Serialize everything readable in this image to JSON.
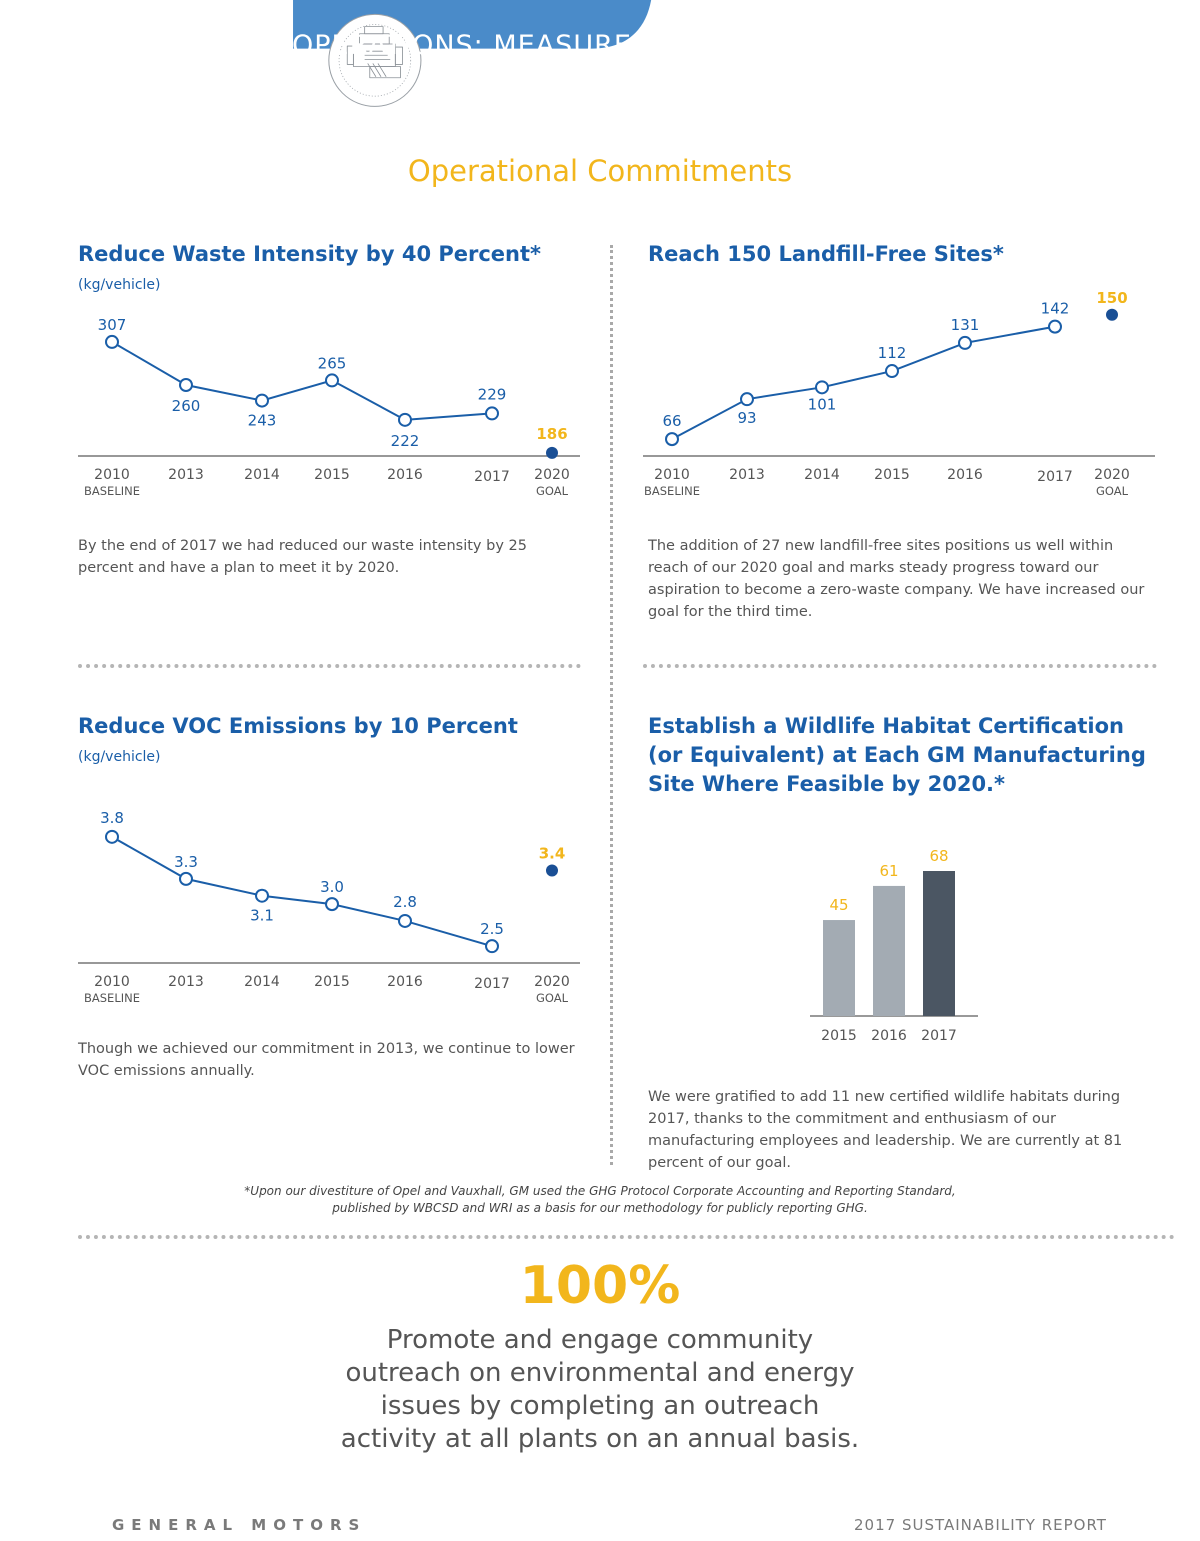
{
  "header": {
    "section_label": "OPERATIONS: MEASURE",
    "title": "Operational Commitments",
    "icon": "engine-icon",
    "banner_color": "#4a8bc9"
  },
  "colors": {
    "accent": "#f2b61c",
    "brand_blue": "#1a5ea8",
    "line_blue": "#1a5ea8"
  },
  "panels": {
    "waste": {
      "title": "Reduce Waste Intensity by 40 Percent*",
      "unit": "(kg/vehicle)",
      "description": "By the end of 2017 we had reduced our waste intensity by 25 percent and have a plan to meet it by 2020."
    },
    "landfill": {
      "title": "Reach 150 Landfill-Free Sites*",
      "description": "The addition of 27 new landfill-free sites positions us well within reach of our 2020 goal and marks steady progress toward our aspiration to become a zero-waste company. We have increased our goal for the third time."
    },
    "voc": {
      "title": "Reduce VOC Emissions by 10 Percent",
      "unit": "(kg/vehicle)",
      "description": "Though we achieved our commitment in 2013, we continue to lower VOC emissions annually."
    },
    "wildlife": {
      "title_lines": [
        "Establish a Wildlife Habitat Certification",
        "(or Equivalent) at Each GM Manufacturing",
        "Site Where Feasible by 2020.*"
      ],
      "description": "We were gratified to add 11 new certified wildlife habitats during 2017, thanks to the commitment and enthusiasm of our manufacturing employees and leadership. We are currently at 81 percent of our goal."
    }
  },
  "chart_data": [
    {
      "type": "line",
      "categories": [
        "2010",
        "2013",
        "2014",
        "2015",
        "2016",
        "2017",
        "2020"
      ],
      "sublabels": [
        "BASELINE",
        "",
        "",
        "",
        "",
        "",
        "GOAL"
      ],
      "series": [
        {
          "values": [
            307,
            260,
            243,
            265,
            222,
            229,
            null
          ]
        },
        {
          "values": [
            null,
            null,
            null,
            null,
            null,
            null,
            186
          ]
        }
      ],
      "value_labels": [
        "307",
        "260",
        "243",
        "265",
        "222",
        "229",
        "186"
      ],
      "ylabel": "(kg/vehicle)"
    },
    {
      "type": "line",
      "categories": [
        "2010",
        "2013",
        "2014",
        "2015",
        "2016",
        "2017",
        "2020"
      ],
      "sublabels": [
        "BASELINE",
        "",
        "",
        "",
        "",
        "",
        "GOAL"
      ],
      "series": [
        {
          "values": [
            66,
            93,
            101,
            112,
            131,
            142,
            null
          ]
        },
        {
          "values": [
            null,
            null,
            null,
            null,
            null,
            null,
            150
          ]
        }
      ],
      "value_labels": [
        "66",
        "93",
        "101",
        "112",
        "131",
        "142",
        "150"
      ]
    },
    {
      "type": "line",
      "categories": [
        "2010",
        "2013",
        "2014",
        "2015",
        "2016",
        "2017",
        "2020"
      ],
      "sublabels": [
        "BASELINE",
        "",
        "",
        "",
        "",
        "",
        "GOAL"
      ],
      "series": [
        {
          "values": [
            3.8,
            3.3,
            3.1,
            3.0,
            2.8,
            2.5,
            null
          ]
        },
        {
          "values": [
            null,
            null,
            null,
            null,
            null,
            null,
            3.4
          ]
        }
      ],
      "value_labels": [
        "3.8",
        "3.3",
        "3.1",
        "3.0",
        "2.8",
        "2.5",
        "3.4"
      ],
      "ylabel": "(kg/vehicle)"
    },
    {
      "type": "bar",
      "categories": [
        "2015",
        "2016",
        "2017"
      ],
      "values": [
        45,
        61,
        68
      ],
      "value_labels": [
        "45",
        "61",
        "68"
      ],
      "bar_colors": [
        "#a3abb3",
        "#a3abb3",
        "#4b5663"
      ]
    }
  ],
  "footnote": {
    "line1": "*Upon our divestiture of Opel and Vauxhall, GM used the GHG Protocol Corporate Accounting and Reporting Standard,",
    "line2": "published by WBCSD and WRI as a basis for our methodology for publicly reporting GHG."
  },
  "community": {
    "stat": "100%",
    "text": "Promote and engage community outreach on environmental and energy issues by completing an outreach activity at all plants on an annual basis."
  },
  "footer": {
    "brand": "GENERAL MOTORS",
    "report": "2017 SUSTAINABILITY REPORT"
  }
}
